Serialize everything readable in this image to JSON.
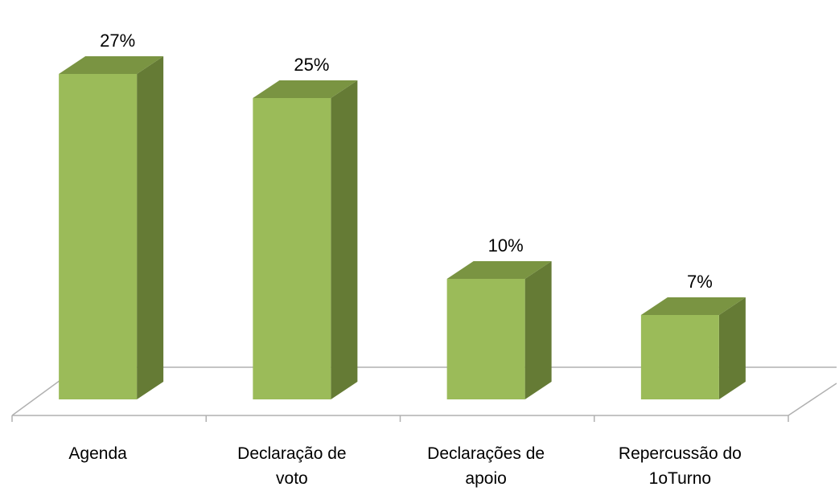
{
  "chart_data": {
    "type": "bar3d",
    "categories": [
      "Agenda",
      "Declaração de voto",
      "Declarações de apoio",
      "Repercussão do 1oTurno"
    ],
    "values": [
      27,
      25,
      10,
      7
    ],
    "value_labels": [
      "27%",
      "25%",
      "10%",
      "7%"
    ],
    "color": "#9bbb59"
  }
}
